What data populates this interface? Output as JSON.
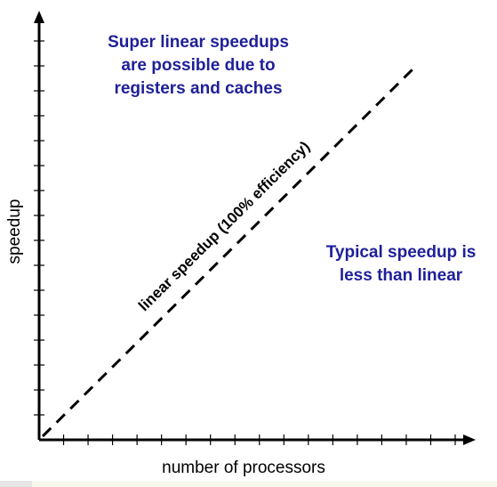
{
  "colors": {
    "note_text": "#1f1f9a",
    "axis": "#000000",
    "ideal_line": "#000000",
    "bottom_bar": "#f7f7ec"
  },
  "labels": {
    "x_axis": "number of processors",
    "y_axis": "speedup",
    "ideal_line": "linear speedup (100% efficiency)",
    "super_linear_note": [
      "Super linear speedups",
      "are possible due to",
      "registers and caches"
    ],
    "typical_note": [
      "Typical speedup is",
      "less than linear"
    ]
  },
  "axes": {
    "x_tick_count": 17,
    "y_tick_count": 16,
    "tick_values_shown": false,
    "line_style": "dashed"
  }
}
